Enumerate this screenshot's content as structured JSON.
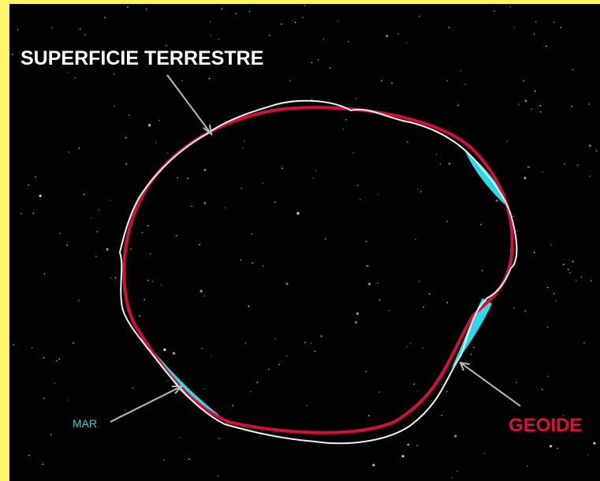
{
  "labels": {
    "surface": "SUPERFICIE TERRESTRE",
    "sea": "MAR",
    "geoid": "GEOIDE"
  }
}
